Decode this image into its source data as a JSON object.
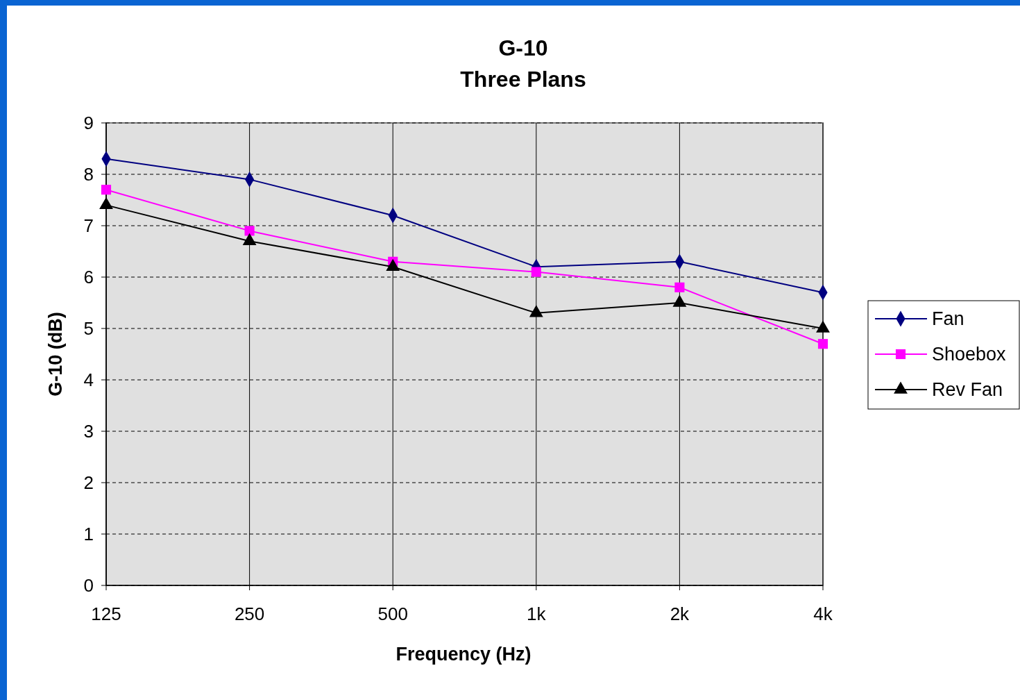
{
  "chart_data": {
    "type": "line",
    "title": "G-10\nThree Plans",
    "xlabel": "Frequency (Hz)",
    "ylabel": "G-10 (dB)",
    "categories": [
      "125",
      "250",
      "500",
      "1k",
      "2k",
      "4k"
    ],
    "series": [
      {
        "name": "Fan",
        "color": "#000080",
        "marker": "diamond",
        "values": [
          8.3,
          7.9,
          7.2,
          6.2,
          6.3,
          5.7
        ]
      },
      {
        "name": "Shoebox",
        "color": "#ff00ff",
        "marker": "square",
        "values": [
          7.7,
          6.9,
          6.3,
          6.1,
          5.8,
          4.7
        ]
      },
      {
        "name": "Rev Fan",
        "color": "#000000",
        "marker": "triangle",
        "values": [
          7.4,
          6.7,
          6.2,
          5.3,
          5.5,
          5.0
        ]
      }
    ],
    "ylim": [
      0,
      9
    ],
    "yticks": [
      0,
      1,
      2,
      3,
      4,
      5,
      6,
      7,
      8,
      9
    ],
    "grid": true,
    "legend": "right",
    "line_style": "solid"
  }
}
